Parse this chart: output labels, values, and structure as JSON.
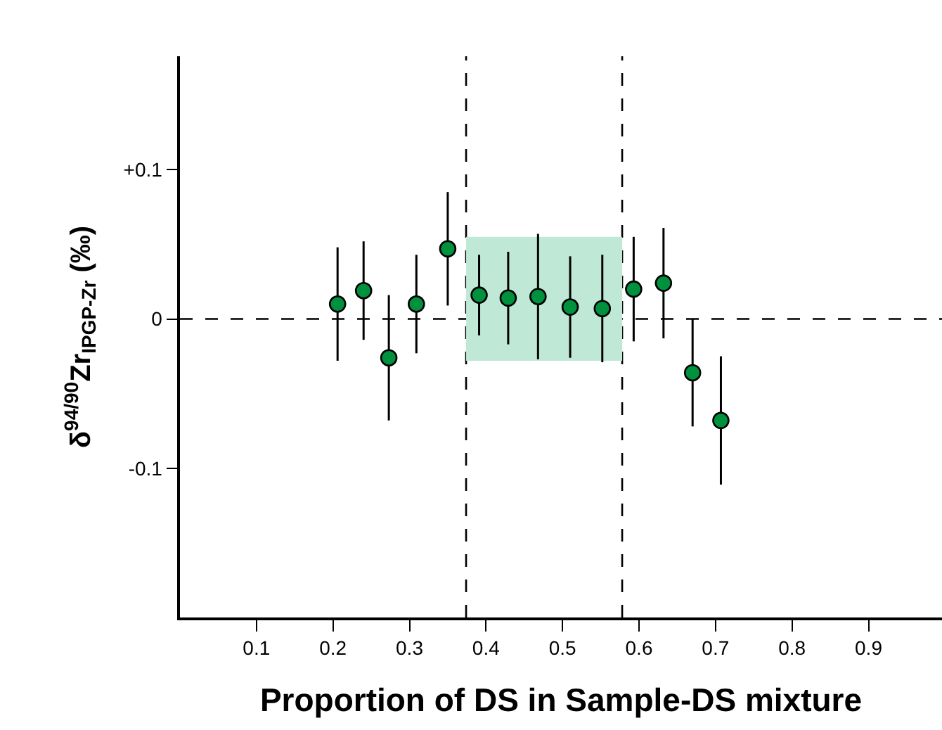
{
  "chart_data": {
    "type": "scatter",
    "xlabel": "Proportion of DS in Sample-DS mixture",
    "ylabel": "δ$^{94/90}$Zr$_{IPGP-Zr}$ (‰)",
    "x": [
      0.206,
      0.24,
      0.273,
      0.309,
      0.35,
      0.391,
      0.429,
      0.468,
      0.51,
      0.552,
      0.593,
      0.632,
      0.67,
      0.707
    ],
    "series": [
      {
        "type": "line",
        "color": "#bfe9d6",
        "x": [
          0.374,
          0.578
        ],
        "values": [
          null,
          null
        ],
        "lower": [
          -0.028,
          -0.028
        ],
        "upper": [
          0.055,
          0.055
        ]
      },
      {
        "color": "#00913f",
        "values": [
          0.01,
          0.019,
          -0.026,
          0.01,
          0.047,
          0.016,
          0.014,
          0.015,
          0.008,
          0.007,
          0.02,
          0.024,
          -0.036,
          -0.068
        ],
        "errors": [
          0.038,
          0.033,
          0.042,
          0.033,
          0.038,
          0.027,
          0.031,
          0.042,
          0.034,
          0.036,
          0.035,
          0.037,
          0.036,
          0.043
        ]
      }
    ],
    "marker": "circle",
    "xlim": [
      0,
      0.996
    ],
    "xticks": [
      0.1,
      0.2,
      0.3,
      0.4,
      0.5,
      0.6,
      0.7,
      0.8,
      0.9
    ],
    "ylim": [
      -0.2,
      0.176
    ],
    "yticks": [
      {
        "value": 0.1,
        "label": "+0.1"
      },
      0,
      -0.1
    ],
    "ref_lines": [
      {
        "axis": "y",
        "value": 0,
        "line_style": "dashed",
        "color": "#000000"
      },
      {
        "axis": "x",
        "value": 0.374,
        "line_style": "dashed",
        "color": "#000000"
      },
      {
        "axis": "x",
        "value": 0.578,
        "line_style": "dashed",
        "color": "#000000"
      }
    ],
    "grid": false
  }
}
